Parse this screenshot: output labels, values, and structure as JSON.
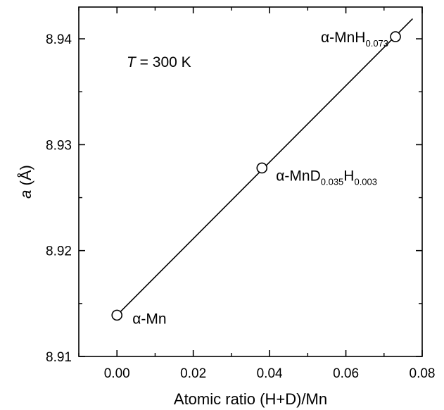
{
  "chart_data": {
    "type": "scatter",
    "xlabel": "Atomic ratio (H+D)/Mn",
    "ylabel_italic": "a",
    "ylabel_rest": " (Å)",
    "xlim": [
      -0.01,
      0.08
    ],
    "ylim": [
      8.91,
      8.943
    ],
    "xticks": [
      0.0,
      0.02,
      0.04,
      0.06,
      0.08
    ],
    "xtick_labels": [
      "0.00",
      "0.02",
      "0.04",
      "0.06",
      "0.08"
    ],
    "yticks": [
      8.91,
      8.92,
      8.93,
      8.94
    ],
    "ytick_labels": [
      "8.91",
      "8.92",
      "8.93",
      "8.94"
    ],
    "points": [
      {
        "x": 0.0,
        "y": 8.9139
      },
      {
        "x": 0.038,
        "y": 8.9278
      },
      {
        "x": 0.073,
        "y": 8.9402
      }
    ],
    "fit_line": {
      "x": [
        0.0,
        0.0775
      ],
      "y": [
        8.9139,
        8.9419
      ]
    },
    "annotation_temperature": {
      "var": "T",
      "rest": " = 300 K"
    },
    "point_labels": [
      {
        "prefix": "α-Mn",
        "parts": []
      },
      {
        "prefix": "α-MnD",
        "parts": [
          {
            "text": "0.035",
            "sub": true
          },
          {
            "text": "H",
            "sub": false
          },
          {
            "text": "0.003",
            "sub": true
          }
        ]
      },
      {
        "prefix": "α-MnH",
        "parts": [
          {
            "text": "0.073",
            "sub": true
          }
        ]
      }
    ]
  }
}
